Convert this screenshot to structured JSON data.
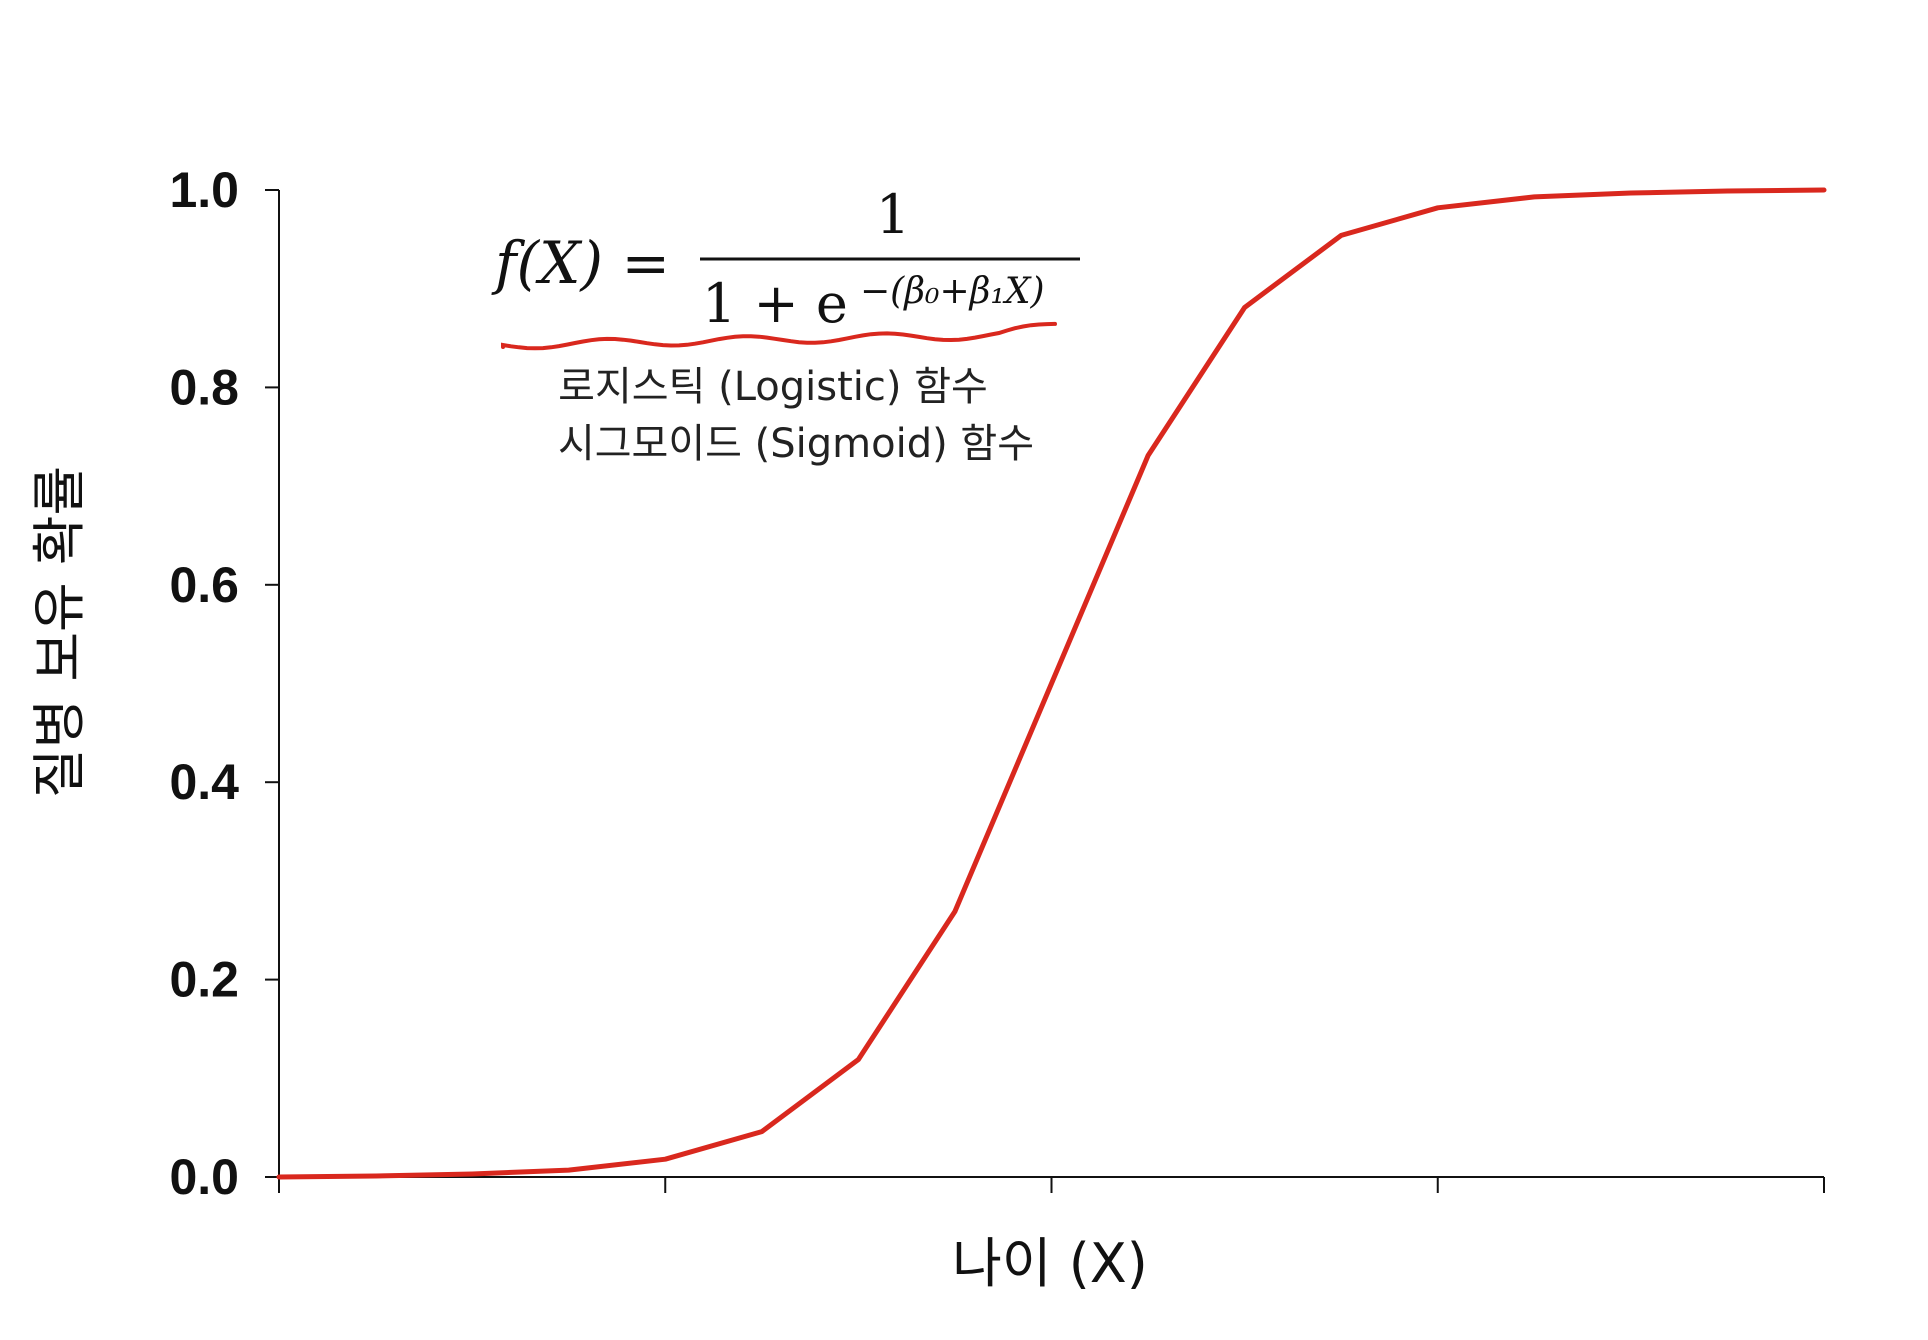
{
  "chart_data": {
    "type": "line",
    "xlabel": "나이 (X)",
    "ylabel": "질병 보유 확률",
    "ylim": [
      0.0,
      1.0
    ],
    "yticks": [
      "0.0",
      "0.2",
      "0.4",
      "0.6",
      "0.8",
      "1.0"
    ],
    "xlim": [
      0,
      16
    ],
    "x_tick_positions": [
      0,
      4,
      8,
      12,
      16
    ],
    "x_tick_labels_shown": false,
    "grid": false,
    "legend": "none",
    "series": [
      {
        "color": "#d9281e",
        "x": [
          0,
          1,
          2,
          3,
          4,
          5,
          6,
          7,
          8,
          9,
          10,
          11,
          12,
          13,
          14,
          15,
          16
        ],
        "y": [
          0.0,
          0.001,
          0.003,
          0.007,
          0.018,
          0.046,
          0.119,
          0.269,
          0.5,
          0.731,
          0.881,
          0.954,
          0.982,
          0.993,
          0.997,
          0.999,
          1.0
        ]
      }
    ],
    "annotation": {
      "formula": {
        "lhs": "f(X) =",
        "numerator": "1",
        "denominator": "1 + e",
        "exponent": "−(β₀+β₁X)"
      },
      "underline_color": "#d9281e",
      "caption_lines": [
        "로지스틱 (Logistic) 함수",
        "시그모이드 (Sigmoid) 함수"
      ]
    }
  }
}
